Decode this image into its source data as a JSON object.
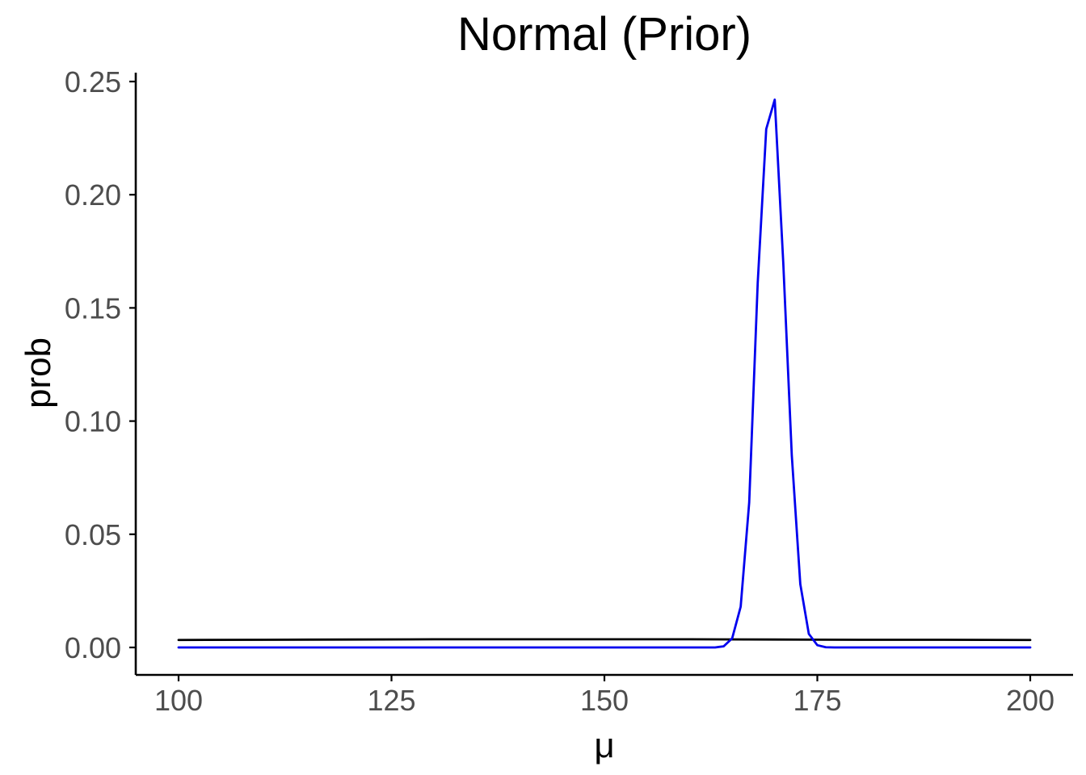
{
  "chart_data": {
    "type": "line",
    "title": "Normal (Prior)",
    "xlabel": "μ",
    "ylabel": "prob",
    "xlim": [
      100,
      200
    ],
    "ylim": [
      0,
      0.25
    ],
    "x_ticks": [
      100,
      125,
      150,
      175,
      200
    ],
    "x_tick_labels": [
      "100",
      "125",
      "150",
      "175",
      "200"
    ],
    "y_ticks": [
      0,
      0.05,
      0.1,
      0.15,
      0.2,
      0.25
    ],
    "y_tick_labels": [
      "0.00",
      "0.05",
      "0.10",
      "0.15",
      "0.20",
      "0.25"
    ],
    "grid": false,
    "legend": "none",
    "series": [
      {
        "color": "#000000",
        "x": [
          100,
          110,
          120,
          130,
          140,
          150,
          160,
          170,
          180,
          190,
          200
        ],
        "y": [
          0.0033,
          0.0034,
          0.0035,
          0.0036,
          0.0036,
          0.0036,
          0.0036,
          0.0035,
          0.0034,
          0.0034,
          0.0033
        ]
      },
      {
        "color": "#0000ee",
        "x": [
          100,
          163,
          164,
          165,
          166,
          167,
          168,
          169,
          170,
          171,
          172,
          173,
          174,
          175,
          176,
          177,
          200
        ],
        "y": [
          0,
          0,
          0.0005,
          0.004,
          0.018,
          0.064,
          0.161,
          0.229,
          0.242,
          0.17,
          0.085,
          0.028,
          0.006,
          0.001,
          0.0001,
          0,
          0
        ]
      }
    ]
  }
}
